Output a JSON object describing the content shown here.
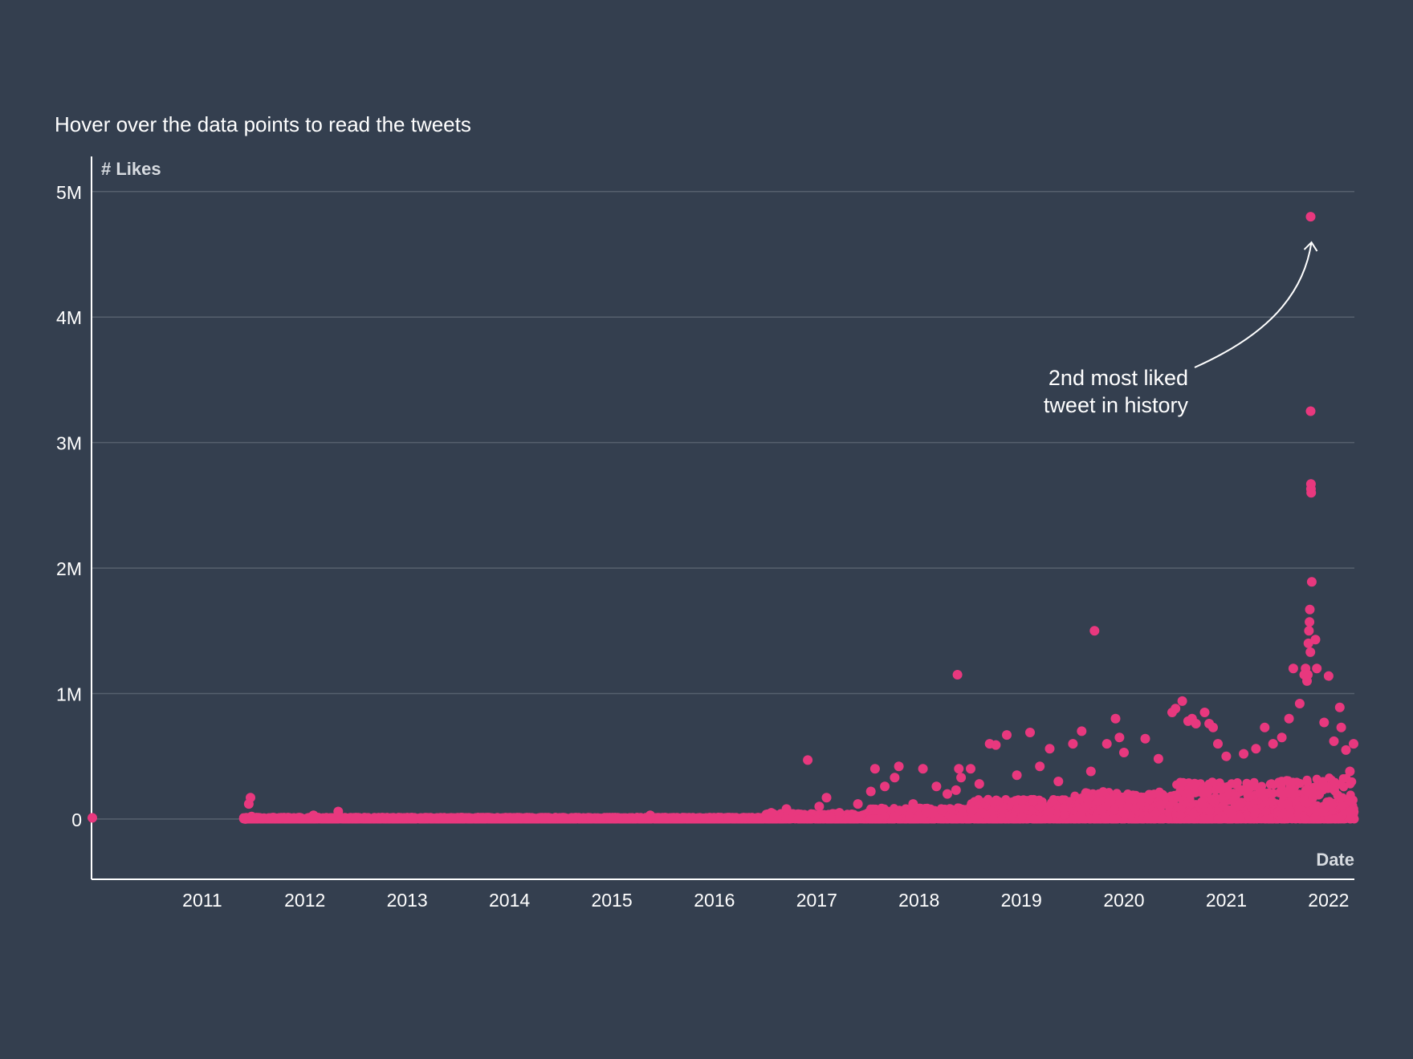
{
  "subtitle": "Hover over the data points to read the tweets",
  "colors": {
    "background": "#343f4f",
    "point": "#e8387e",
    "grid": "#56606e",
    "axis": "#ffffff",
    "text": "#ffffff",
    "axis_title": "#d7dbe0"
  },
  "annotation": {
    "line1": "2nd most liked",
    "line2": "tweet in history"
  },
  "chart_data": {
    "type": "scatter",
    "title": "",
    "subtitle": "Hover over the data points to read the tweets",
    "xlabel": "Date",
    "ylabel": "# Likes",
    "xlim": [
      "2010-06-01",
      "2022-10-01"
    ],
    "ylim": [
      -480000,
      5280000
    ],
    "x_ticks": [
      "2011",
      "2012",
      "2013",
      "2014",
      "2015",
      "2016",
      "2017",
      "2018",
      "2019",
      "2020",
      "2021",
      "2022"
    ],
    "y_ticks": [
      {
        "value": 0,
        "label": "0"
      },
      {
        "value": 1000000,
        "label": "1M"
      },
      {
        "value": 2000000,
        "label": "2M"
      },
      {
        "value": 3000000,
        "label": "3M"
      },
      {
        "value": 4000000,
        "label": "4M"
      },
      {
        "value": 5000000,
        "label": "5M"
      }
    ],
    "grid": true,
    "density_bands": [
      {
        "start": "2011-11-25",
        "end": "2016-12-31",
        "max": 15000
      },
      {
        "start": "2017-01-01",
        "end": "2017-12-31",
        "max": 45000
      },
      {
        "start": "2018-01-01",
        "end": "2018-12-31",
        "max": 90000
      },
      {
        "start": "2019-01-01",
        "end": "2019-12-31",
        "max": 160000
      },
      {
        "start": "2020-01-01",
        "end": "2020-12-31",
        "max": 220000
      },
      {
        "start": "2021-01-01",
        "end": "2021-12-31",
        "max": 300000
      },
      {
        "start": "2022-01-01",
        "end": "2022-10-01",
        "max": 330000
      }
    ],
    "highlight": {
      "date": "2022-04-28",
      "likes": 4800000,
      "label": "2nd most liked tweet in history"
    },
    "series": [
      {
        "points": [
          [
            "2010-06-04",
            10000
          ],
          [
            "2011-12-02",
            0
          ],
          [
            "2011-12-14",
            120000
          ],
          [
            "2011-12-20",
            170000
          ],
          [
            "2011-12-24",
            20000
          ],
          [
            "2012-08-01",
            30000
          ],
          [
            "2012-10-28",
            60000
          ],
          [
            "2015-11-15",
            30000
          ],
          [
            "2017-01-20",
            50000
          ],
          [
            "2017-03-15",
            80000
          ],
          [
            "2017-05-30",
            470000
          ],
          [
            "2017-07-10",
            100000
          ],
          [
            "2017-08-05",
            170000
          ],
          [
            "2017-09-20",
            50000
          ],
          [
            "2017-11-25",
            120000
          ],
          [
            "2018-01-10",
            220000
          ],
          [
            "2018-01-25",
            400000
          ],
          [
            "2018-03-01",
            260000
          ],
          [
            "2018-04-05",
            330000
          ],
          [
            "2018-04-20",
            420000
          ],
          [
            "2018-06-10",
            120000
          ],
          [
            "2018-07-15",
            400000
          ],
          [
            "2018-09-01",
            260000
          ],
          [
            "2018-10-10",
            200000
          ],
          [
            "2018-11-10",
            230000
          ],
          [
            "2018-11-15",
            1150000
          ],
          [
            "2018-11-20",
            400000
          ],
          [
            "2018-11-28",
            330000
          ],
          [
            "2019-01-01",
            400000
          ],
          [
            "2019-02-01",
            280000
          ],
          [
            "2019-03-10",
            600000
          ],
          [
            "2019-04-01",
            590000
          ],
          [
            "2019-05-10",
            670000
          ],
          [
            "2019-06-15",
            350000
          ],
          [
            "2019-08-01",
            690000
          ],
          [
            "2019-09-05",
            420000
          ],
          [
            "2019-10-10",
            560000
          ],
          [
            "2019-11-10",
            300000
          ],
          [
            "2020-01-01",
            600000
          ],
          [
            "2020-02-01",
            700000
          ],
          [
            "2020-03-05",
            380000
          ],
          [
            "2020-03-18",
            1500000
          ],
          [
            "2020-05-01",
            600000
          ],
          [
            "2020-06-01",
            800000
          ],
          [
            "2020-06-15",
            650000
          ],
          [
            "2020-07-01",
            530000
          ],
          [
            "2020-09-15",
            640000
          ],
          [
            "2020-11-01",
            480000
          ],
          [
            "2020-12-20",
            850000
          ],
          [
            "2021-01-01",
            880000
          ],
          [
            "2021-01-25",
            940000
          ],
          [
            "2021-02-15",
            780000
          ],
          [
            "2021-03-01",
            800000
          ],
          [
            "2021-03-15",
            760000
          ],
          [
            "2021-04-15",
            850000
          ],
          [
            "2021-05-01",
            760000
          ],
          [
            "2021-05-15",
            730000
          ],
          [
            "2021-06-01",
            600000
          ],
          [
            "2021-07-01",
            500000
          ],
          [
            "2021-09-01",
            520000
          ],
          [
            "2021-10-15",
            560000
          ],
          [
            "2021-11-15",
            730000
          ],
          [
            "2021-12-15",
            600000
          ],
          [
            "2022-01-15",
            650000
          ],
          [
            "2022-02-10",
            800000
          ],
          [
            "2022-02-25",
            1200000
          ],
          [
            "2022-03-20",
            920000
          ],
          [
            "2022-04-05",
            1150000
          ],
          [
            "2022-04-10",
            1200000
          ],
          [
            "2022-04-15",
            1100000
          ],
          [
            "2022-04-18",
            1150000
          ],
          [
            "2022-04-20",
            1400000
          ],
          [
            "2022-04-22",
            1500000
          ],
          [
            "2022-04-24",
            1570000
          ],
          [
            "2022-04-25",
            1670000
          ],
          [
            "2022-04-27",
            1330000
          ],
          [
            "2022-04-28",
            4800000
          ],
          [
            "2022-04-28",
            3250000
          ],
          [
            "2022-04-29",
            2670000
          ],
          [
            "2022-04-29",
            2630000
          ],
          [
            "2022-04-30",
            2600000
          ],
          [
            "2022-05-02",
            1890000
          ],
          [
            "2022-05-15",
            1430000
          ],
          [
            "2022-05-20",
            1200000
          ],
          [
            "2022-06-15",
            770000
          ],
          [
            "2022-07-01",
            1140000
          ],
          [
            "2022-07-20",
            620000
          ],
          [
            "2022-08-10",
            890000
          ],
          [
            "2022-08-15",
            730000
          ],
          [
            "2022-09-01",
            550000
          ],
          [
            "2022-09-15",
            380000
          ],
          [
            "2022-09-28",
            600000
          ]
        ]
      }
    ]
  }
}
